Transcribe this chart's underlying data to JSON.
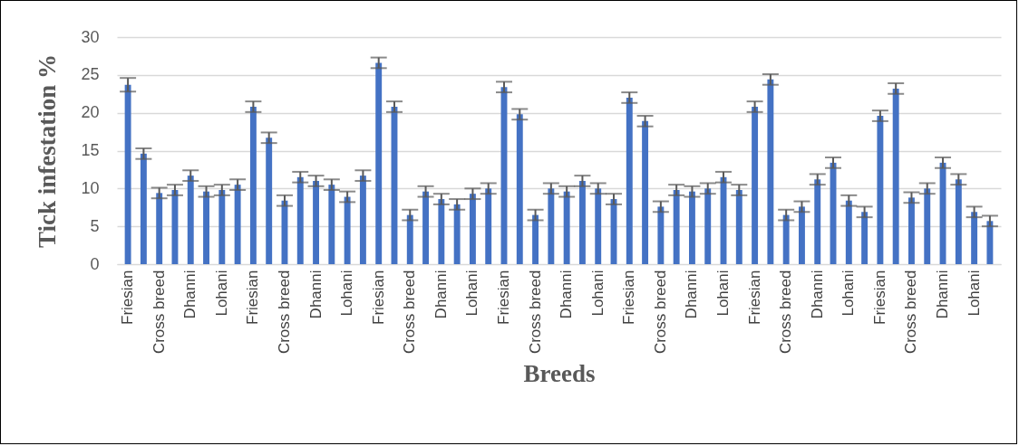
{
  "chart_data": {
    "type": "bar",
    "xlabel": "Breeds",
    "ylabel": "Tick infestation %",
    "categories": [
      "Friesian",
      null,
      "Cross breed",
      null,
      "Dhanni",
      null,
      "Lohani",
      null,
      "Friesian",
      null,
      "Cross breed",
      null,
      "Dhanni",
      null,
      "Lohani",
      null,
      "Friesian",
      null,
      "Cross breed",
      null,
      "Dhanni",
      null,
      "Lohani",
      null,
      "Friesian",
      null,
      "Cross breed",
      null,
      "Dhanni",
      null,
      "Lohani",
      null,
      "Friesian",
      null,
      "Cross breed",
      null,
      "Dhanni",
      null,
      "Lohani",
      null,
      "Friesian",
      null,
      "Cross breed",
      null,
      "Dhanni",
      null,
      "Lohani",
      null,
      "Friesian",
      null,
      "Cross breed",
      null,
      "Dhanni",
      null,
      "Lohani",
      null
    ],
    "values": [
      23.7,
      14.6,
      9.4,
      9.8,
      11.7,
      9.6,
      9.8,
      10.5,
      20.8,
      16.7,
      8.4,
      11.5,
      11.0,
      10.5,
      8.9,
      11.7,
      26.6,
      20.8,
      6.5,
      9.6,
      8.6,
      7.9,
      9.3,
      10.0,
      23.4,
      19.8,
      6.5,
      10.0,
      9.6,
      11.0,
      10.0,
      8.6,
      22.0,
      18.9,
      7.6,
      9.8,
      9.6,
      10.0,
      11.5,
      9.8,
      20.8,
      24.4,
      6.5,
      7.6,
      11.2,
      13.4,
      8.4,
      6.9,
      19.6,
      23.2,
      8.8,
      10.0,
      13.4,
      11.2,
      6.9,
      5.7
    ],
    "errors": [
      0.9,
      0.7,
      0.7,
      0.7,
      0.7,
      0.7,
      0.7,
      0.7,
      0.7,
      0.7,
      0.7,
      0.7,
      0.7,
      0.7,
      0.7,
      0.7,
      0.7,
      0.7,
      0.7,
      0.7,
      0.7,
      0.7,
      0.7,
      0.7,
      0.7,
      0.7,
      0.7,
      0.7,
      0.7,
      0.7,
      0.7,
      0.7,
      0.7,
      0.7,
      0.7,
      0.7,
      0.7,
      0.7,
      0.7,
      0.7,
      0.7,
      0.7,
      0.7,
      0.7,
      0.7,
      0.7,
      0.7,
      0.7,
      0.7,
      0.7,
      0.7,
      0.7,
      0.7,
      0.7,
      0.7,
      0.7
    ],
    "color": "#4472c4",
    "ylim": [
      0,
      30
    ],
    "yticks": [
      0,
      5,
      10,
      15,
      20,
      25,
      30
    ],
    "grid": "y"
  }
}
